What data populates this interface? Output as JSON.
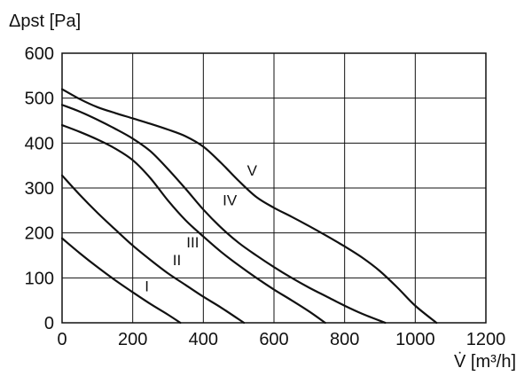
{
  "chart_data": {
    "type": "line",
    "title": "",
    "xlabel": "V̇ [m³/h]",
    "ylabel": "Δpst [Pa]",
    "xlim": [
      0,
      1200
    ],
    "ylim": [
      0,
      600
    ],
    "x_ticks": [
      "0",
      "200",
      "400",
      "600",
      "800",
      "1000",
      "1200"
    ],
    "y_ticks": [
      "0",
      "100",
      "200",
      "300",
      "400",
      "500",
      "600"
    ],
    "grid": true,
    "legend": "none",
    "series": [
      {
        "name": "I",
        "x": [
          0,
          50,
          100,
          150,
          200,
          250,
          300,
          335
        ],
        "y": [
          188,
          155,
          124,
          95,
          68,
          42,
          18,
          0
        ]
      },
      {
        "name": "II",
        "x": [
          0,
          50,
          100,
          150,
          200,
          250,
          300,
          350,
          400,
          450,
          515
        ],
        "y": [
          328,
          285,
          245,
          208,
          172,
          140,
          110,
          84,
          58,
          34,
          0
        ]
      },
      {
        "name": "III",
        "x": [
          0,
          50,
          100,
          150,
          200,
          250,
          300,
          350,
          400,
          450,
          500,
          550,
          600,
          650,
          700,
          745
        ],
        "y": [
          440,
          425,
          408,
          388,
          362,
          322,
          272,
          228,
          192,
          158,
          128,
          100,
          74,
          50,
          25,
          0
        ]
      },
      {
        "name": "IV",
        "x": [
          0,
          50,
          100,
          150,
          200,
          250,
          300,
          350,
          400,
          450,
          500,
          550,
          600,
          650,
          700,
          750,
          800,
          850,
          915
        ],
        "y": [
          485,
          470,
          452,
          432,
          410,
          382,
          342,
          298,
          252,
          212,
          178,
          150,
          124,
          100,
          78,
          58,
          38,
          20,
          0
        ]
      },
      {
        "name": "V",
        "x": [
          0,
          50,
          100,
          150,
          200,
          250,
          300,
          350,
          400,
          450,
          500,
          550,
          600,
          650,
          700,
          750,
          800,
          850,
          900,
          950,
          1000,
          1060
        ],
        "y": [
          520,
          498,
          480,
          467,
          455,
          443,
          430,
          415,
          392,
          356,
          316,
          280,
          256,
          236,
          215,
          193,
          170,
          145,
          115,
          78,
          38,
          0
        ]
      }
    ],
    "curve_labels": [
      {
        "text": "I",
        "x": 240,
        "y": 70
      },
      {
        "text": "II",
        "x": 325,
        "y": 128
      },
      {
        "text": "III",
        "x": 370,
        "y": 168
      },
      {
        "text": "IV",
        "x": 475,
        "y": 262
      },
      {
        "text": "V",
        "x": 538,
        "y": 328
      }
    ]
  }
}
